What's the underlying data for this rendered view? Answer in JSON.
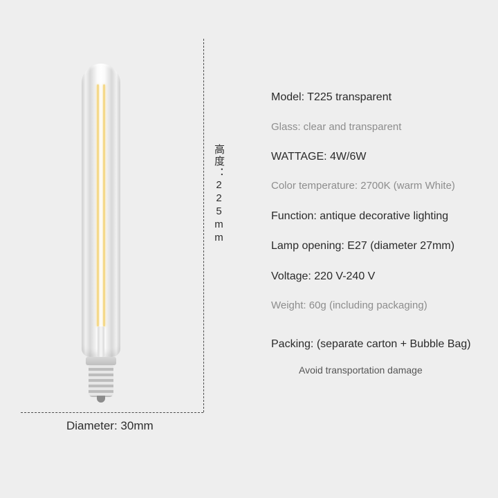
{
  "colors": {
    "background": "#eeeeee",
    "dash": "#4b4b4b",
    "text_main": "#2a2a2a",
    "text_muted": "#8d8d8d",
    "filament": "#f5d98a"
  },
  "dimensions": {
    "height_label": "高度：225mm",
    "diameter_label": "Diameter: 30mm"
  },
  "specs": {
    "model": "Model: T225 transparent",
    "glass": "Glass: clear and transparent",
    "wattage": "WATTAGE: 4W/6W",
    "color_temp": "Color temperature: 2700K (warm White)",
    "function": "Function: antique decorative lighting",
    "lamp_opening": "Lamp opening: E27 (diameter 27mm)",
    "voltage": "Voltage: 220 V-240 V",
    "weight": "Weight: 60g (including packaging)",
    "packing": "Packing: (separate carton + Bubble Bag)",
    "packing_note": "Avoid transportation damage"
  },
  "spec_style_map": {
    "model": "strong",
    "glass": "muted",
    "wattage": "strong",
    "color_temp": "muted",
    "function": "strong",
    "lamp_opening": "strong",
    "voltage": "strong",
    "weight": "muted",
    "packing": "strong",
    "packing_note": "sub"
  }
}
